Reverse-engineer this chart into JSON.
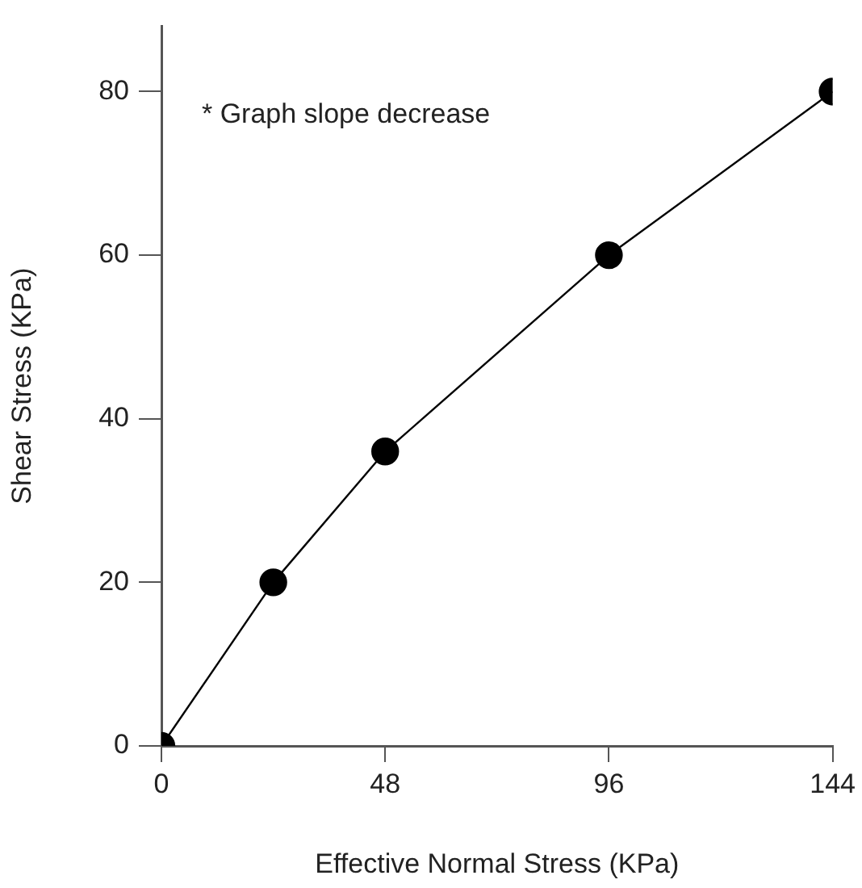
{
  "chart_data": {
    "type": "line",
    "xlabel": "Effective Normal Stress (KPa)",
    "ylabel": "Shear Stress (KPa)",
    "annotations": [
      "* Graph slope decrease"
    ],
    "x": [
      0,
      24,
      48,
      96,
      144
    ],
    "series": [
      {
        "color": "#000000",
        "values": [
          0,
          20,
          36,
          60,
          80
        ]
      }
    ],
    "xlim": [
      0,
      144
    ],
    "xticks": [
      0,
      48,
      96,
      144
    ],
    "ylim": [
      0,
      88
    ],
    "yticks": [
      0,
      20,
      40,
      60,
      80
    ],
    "grid": false,
    "legend": false,
    "marker": "circle",
    "line_style": "solid"
  }
}
